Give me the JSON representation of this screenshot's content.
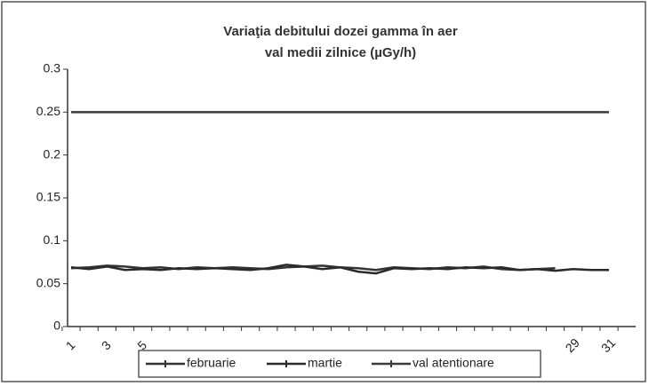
{
  "chart_data": {
    "type": "line",
    "title": "Variaţia debitului dozei gamma în aer",
    "subtitle": "val medii zilnice (µGy/h)",
    "categories": [
      "1",
      null,
      "3",
      null,
      "5",
      null,
      null,
      null,
      null,
      null,
      null,
      null,
      null,
      null,
      null,
      null,
      null,
      null,
      null,
      null,
      null,
      null,
      null,
      null,
      null,
      null,
      null,
      null,
      "29",
      null,
      "31"
    ],
    "series": [
      {
        "name": "februarie",
        "color": "#333333",
        "values": [
          0.068,
          0.069,
          0.071,
          0.07,
          0.068,
          0.069,
          0.067,
          0.069,
          0.068,
          0.069,
          0.068,
          0.067,
          0.069,
          0.07,
          0.071,
          0.069,
          0.068,
          0.066,
          0.069,
          0.068,
          0.067,
          0.069,
          0.068,
          0.07,
          0.067,
          0.066,
          0.067,
          0.068,
          null,
          null,
          null
        ]
      },
      {
        "name": "martie",
        "color": "#2a2a2a",
        "values": [
          0.069,
          0.067,
          0.07,
          0.066,
          0.067,
          0.066,
          0.068,
          0.067,
          0.068,
          0.067,
          0.066,
          0.068,
          0.072,
          0.07,
          0.067,
          0.069,
          0.064,
          0.062,
          0.068,
          0.067,
          0.068,
          0.067,
          0.069,
          0.068,
          0.069,
          0.066,
          0.067,
          0.065,
          0.067,
          0.066,
          0.066
        ]
      },
      {
        "name": "val atentionare",
        "color": "#3a3a3a",
        "values": [
          0.25,
          0.25,
          0.25,
          0.25,
          0.25,
          0.25,
          0.25,
          0.25,
          0.25,
          0.25,
          0.25,
          0.25,
          0.25,
          0.25,
          0.25,
          0.25,
          0.25,
          0.25,
          0.25,
          0.25,
          0.25,
          0.25,
          0.25,
          0.25,
          0.25,
          0.25,
          0.25,
          0.25,
          0.25,
          0.25,
          0.25
        ]
      }
    ],
    "ylim": [
      0,
      0.3
    ],
    "yticks": [
      0,
      0.05,
      0.1,
      0.15,
      0.2,
      0.25,
      0.3
    ],
    "grid": false,
    "legend": "bottom"
  }
}
